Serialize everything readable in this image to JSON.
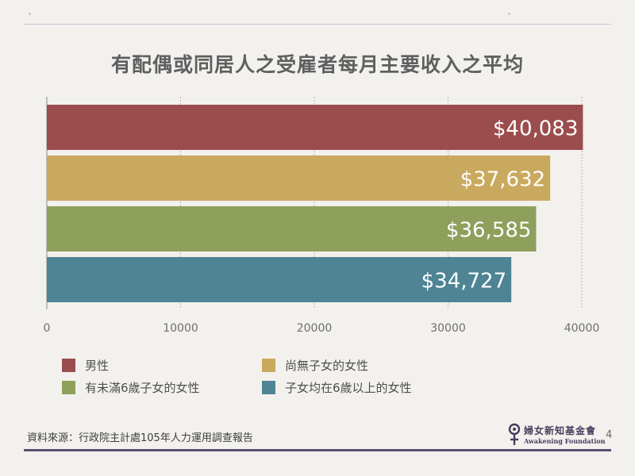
{
  "page": {
    "title": "有配偶或同居人之受雇者每月主要收入之平均",
    "source": "資料來源：行政院主計處105年人力運用調查報告",
    "page_number": "4",
    "logo": {
      "cn": "婦女新知基金會",
      "en": "Awakening Foundation"
    }
  },
  "chart_data": {
    "type": "bar",
    "orientation": "horizontal",
    "title": "有配偶或同居人之受雇者每月主要收入之平均",
    "categories": [
      "男性",
      "尚無子女的女性",
      "有未滿6歲子女的女性",
      "子女均在6歲以上的女性"
    ],
    "values": [
      40083,
      37632,
      36585,
      34727
    ],
    "data_labels": [
      "$40,083",
      "$37,632",
      "$36,585",
      "$34,727"
    ],
    "colors": [
      "#9b4d4d",
      "#c9a95d",
      "#8f9f5c",
      "#4e8494"
    ],
    "xlim": [
      0,
      40000
    ],
    "x_ticks": [
      "0",
      "10000",
      "20000",
      "30000",
      "40000"
    ],
    "grid": true,
    "legend_position": "bottom",
    "xlabel": "",
    "ylabel": ""
  }
}
